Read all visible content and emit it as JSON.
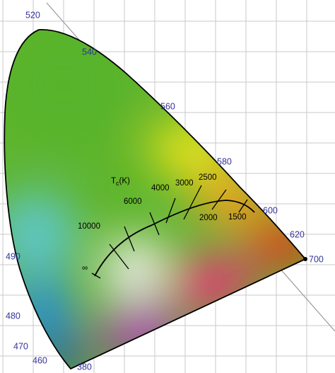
{
  "wavelength_labels": [
    "520",
    "540",
    "560",
    "580",
    "600",
    "620",
    "700",
    "490",
    "480",
    "470",
    "460",
    "380"
  ],
  "planckian": {
    "symbol": "T",
    "subscript": "c",
    "unit": "(K)",
    "temperatures": [
      "10000",
      "6000",
      "4000",
      "3000",
      "2500",
      "2000",
      "1500",
      "∞"
    ]
  }
}
